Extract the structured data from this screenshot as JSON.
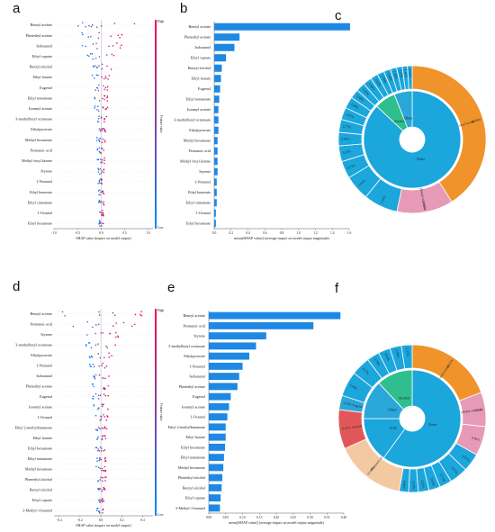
{
  "colors": {
    "bar": "#1E88E5",
    "bar_highlight": "#1E88E5",
    "cbar_high": "#ff0051",
    "cbar_low": "#008bfb",
    "esters": "#1ba6dc",
    "alcohols": "#2fbf8f",
    "others": "#2aa7d9",
    "ketones": "#66c2a5",
    "aldehydes": "#3fb36b",
    "benzyl_acetate": "#f0932b",
    "pentanoic_acid": "#f3c9a2",
    "styrene": "#e15759",
    "eugenol": "#2aa7d9",
    "third_esters": "#1ba6dc",
    "pink": "#e79ab6"
  },
  "panels": {
    "a": "a",
    "b": "b",
    "c": "c",
    "d": "d",
    "e": "e",
    "f": "f"
  },
  "chart_data": [
    {
      "id": "a",
      "type": "scatter",
      "subtype": "shap-beeswarm",
      "xlabel": "SHAP value (impact on model output)",
      "xticks": [
        "-1.0",
        "-0.5",
        "0.0",
        "0.5",
        "1.0"
      ],
      "xlim": [
        -1.0,
        1.1
      ],
      "colorbar": {
        "title": "Feature value",
        "high": "High",
        "low": "Low"
      },
      "features": [
        "Benzyl acetate",
        "Phenethyl acetate",
        "Isobutanol",
        "Ethyl caprate",
        "Benzyl alcohol",
        "Ethyl laurate",
        "Eugenol",
        "Ethyl nonanoate",
        "Isoamyl acetate",
        "3-methylbutyl octanoate",
        "Ethylpyruvate",
        "Methyl hexanoate",
        "Pentanoic acid",
        "Methyl vinyl ketone",
        "Styrene",
        "1-Nonanol",
        "Ethyl benzoate",
        "Ethyl cinnamate",
        "1-Octanol",
        "Ethyl hexanoate"
      ],
      "spread": [
        0.9,
        0.55,
        0.45,
        0.35,
        0.22,
        0.2,
        0.18,
        0.15,
        0.14,
        0.12,
        0.1,
        0.1,
        0.09,
        0.08,
        0.08,
        0.07,
        0.06,
        0.06,
        0.05,
        0.05
      ]
    },
    {
      "id": "b",
      "type": "bar",
      "orientation": "horizontal",
      "xlabel": "mean(|SHAP value|) (average impact on model output magnitude)",
      "xticks": [
        "0.0",
        "0.2",
        "0.4",
        "0.6",
        "0.8",
        "1.0",
        "1.2",
        "1.4",
        "1.6"
      ],
      "xlim": [
        0,
        1.6
      ],
      "categories": [
        "Benzyl acetate",
        "Phenethyl acetate",
        "Isobutanol",
        "Ethyl caprate",
        "Benzyl alcohol",
        "Ethyl laurate",
        "Eugenol",
        "Ethyl nonanoate",
        "Isoamyl acetate",
        "3-methylbutyl octanoate",
        "Ethylpyruvate",
        "Methyl hexanoate",
        "Pentanoic acid",
        "Methyl vinyl ketone",
        "Styrene",
        "1-Nonanol",
        "Ethyl benzoate",
        "Ethyl cinnamate",
        "1-Octanol",
        "Ethyl hexanoate"
      ],
      "values": [
        1.61,
        0.3,
        0.24,
        0.14,
        0.09,
        0.08,
        0.07,
        0.06,
        0.05,
        0.05,
        0.05,
        0.04,
        0.04,
        0.04,
        0.04,
        0.03,
        0.03,
        0.03,
        0.02,
        0.02
      ],
      "highlight_labels": [
        "Ethyl caprate",
        "Ethyl laurate"
      ]
    },
    {
      "id": "c",
      "type": "pie",
      "subtype": "sunburst",
      "inner": [
        {
          "label": "Esters",
          "value": 87,
          "color": "#1ba6dc"
        },
        {
          "label": "Alcohols",
          "value": 7,
          "color": "#2fbf8f"
        },
        {
          "label": "Others",
          "value": 6,
          "color": "#2aa7d9"
        }
      ],
      "outer": [
        {
          "label": "Benzyl acetate",
          "value": 40.08,
          "color": "#f0932b"
        },
        {
          "label": "3-methylbutyl octanoate",
          "value": 12.09,
          "color": "#e79ab6"
        },
        {
          "label": "",
          "value": 7.32,
          "color": "#1ba6dc"
        },
        {
          "label": "",
          "value": 5.41,
          "color": "#1ba6dc"
        },
        {
          "label": "",
          "value": 3.71,
          "color": "#1ba6dc"
        },
        {
          "label": "",
          "value": 3.37,
          "color": "#1ba6dc"
        },
        {
          "label": "",
          "value": 2.91,
          "color": "#1ba6dc"
        },
        {
          "label": "",
          "value": 2.77,
          "color": "#1ba6dc"
        },
        {
          "label": "",
          "value": 2.61,
          "color": "#1ba6dc"
        },
        {
          "label": "",
          "value": 2.49,
          "color": "#1ba6dc"
        },
        {
          "label": "",
          "value": 1.98,
          "color": "#1ba6dc"
        },
        {
          "label": "",
          "value": 1.92,
          "color": "#1ba6dc"
        },
        {
          "label": "",
          "value": 1.86,
          "color": "#1ba6dc"
        },
        {
          "label": "",
          "value": 1.62,
          "color": "#1ba6dc"
        },
        {
          "label": "",
          "value": 1.5,
          "color": "#1ba6dc"
        },
        {
          "label": "",
          "value": 1.45,
          "color": "#1ba6dc"
        },
        {
          "label": "",
          "value": 1.36,
          "color": "#1ba6dc"
        },
        {
          "label": "",
          "value": 1.22,
          "color": "#1ba6dc"
        },
        {
          "label": "",
          "value": 1.1,
          "color": "#1ba6dc"
        },
        {
          "label": "",
          "value": 1.02,
          "color": "#1ba6dc"
        }
      ],
      "outer_text": [
        "40.08%",
        "12.09%",
        "7.32%",
        "5.41%",
        "3.71%",
        "3.37%",
        "2.91%",
        "2.77%",
        "2.61%",
        "2.49%",
        "1.98%",
        "1.92%",
        "1.86%",
        "1.62%",
        "1.50%",
        "1.45%",
        "1.36%",
        "1.22%",
        "1.10%",
        "1.02%"
      ]
    },
    {
      "id": "d",
      "type": "scatter",
      "subtype": "shap-beeswarm",
      "xlabel": "SHAP value (impact on model output)",
      "xticks": [
        "-0.4",
        "-0.2",
        "0.0",
        "0.2",
        "0.4"
      ],
      "xlim": [
        -0.45,
        0.5
      ],
      "colorbar": {
        "title": "Feature value",
        "high": "High",
        "low": "Low"
      },
      "features": [
        "Benzyl acetate",
        "Pentanoic acid",
        "Styrene",
        "3-methylbutyl octanoate",
        "Ethylpyruvate",
        "1-Nonanol",
        "Isobutanol",
        "Phenethyl acetate",
        "Eugenol",
        "Isoamyl acetate",
        "1-Octanol",
        "Ethyl 2-methylbutanoate",
        "Ethyl laurate",
        "Ethyl hexanoate",
        "Ethyl nonanoate",
        "Methyl hexanoate",
        "Phenethyl alcohol",
        "Benzyl alcohol",
        "Ethyl caprate",
        "3-Methyl-1-butanol"
      ],
      "spread": [
        0.4,
        0.35,
        0.2,
        0.15,
        0.12,
        0.11,
        0.1,
        0.09,
        0.08,
        0.07,
        0.07,
        0.06,
        0.06,
        0.06,
        0.05,
        0.05,
        0.05,
        0.04,
        0.04,
        0.04
      ]
    },
    {
      "id": "e",
      "type": "bar",
      "orientation": "horizontal",
      "xlabel": "mean(|SHAP value|) (average impact on model output magnitude)",
      "xticks": [
        "0.00",
        "0.05",
        "0.10",
        "0.15",
        "0.20",
        "0.25",
        "0.30",
        "0.35",
        "0.40"
      ],
      "xlim": [
        0,
        0.4
      ],
      "categories": [
        "Benzyl acetate",
        "Pentanoic acid",
        "Styrene",
        "3-methylbutyl octanoate",
        "Ethylpyruvate",
        "1-Nonanol",
        "Isobutanol",
        "Phenethyl acetate",
        "Eugenol",
        "Isoamyl acetate",
        "1-Octanol",
        "Ethyl 2-methylbutanoate",
        "Ethyl laurate",
        "Ethyl hexanoate",
        "Ethyl nonanoate",
        "Methyl hexanoate",
        "Phenethyl alcohol",
        "Benzyl alcohol",
        "Ethyl caprate",
        "3-Methyl-1-butanol"
      ],
      "values": [
        0.39,
        0.31,
        0.17,
        0.14,
        0.12,
        0.1,
        0.09,
        0.085,
        0.065,
        0.06,
        0.055,
        0.05,
        0.05,
        0.048,
        0.045,
        0.043,
        0.04,
        0.038,
        0.035,
        0.033
      ]
    },
    {
      "id": "f",
      "type": "pie",
      "subtype": "sunburst",
      "inner": [
        {
          "label": "Esters",
          "value": 60,
          "color": "#1ba6dc"
        },
        {
          "label": "Acids",
          "value": 15,
          "color": "#1ba6dc"
        },
        {
          "label": "Others",
          "value": 13,
          "color": "#2aa7d9"
        },
        {
          "label": "Alcohols",
          "value": 12,
          "color": "#2fbf8f"
        }
      ],
      "outer": [
        {
          "label": "Benzyl acetate",
          "value": 19.25,
          "color": "#f0932b"
        },
        {
          "label": "3-methylbutyl octanoate",
          "value": 7.51,
          "color": "#e79ab6"
        },
        {
          "label": "",
          "value": 6.4,
          "color": "#e79ab6"
        },
        {
          "label": "",
          "value": 4.01,
          "color": "#1ba6dc"
        },
        {
          "label": "",
          "value": 3.97,
          "color": "#1ba6dc"
        },
        {
          "label": "",
          "value": 2.71,
          "color": "#1ba6dc"
        },
        {
          "label": "",
          "value": 2.47,
          "color": "#1ba6dc"
        },
        {
          "label": "",
          "value": 2.35,
          "color": "#1ba6dc"
        },
        {
          "label": "",
          "value": 2.1,
          "color": "#1ba6dc"
        },
        {
          "label": "",
          "value": 2.08,
          "color": "#1ba6dc"
        },
        {
          "label": "Pentanoic acid",
          "value": 15.48,
          "color": "#f3c9a2"
        },
        {
          "label": "Styrene",
          "value": 8.61,
          "color": "#e15759"
        },
        {
          "label": "Eugenol",
          "value": 3.15,
          "color": "#2aa7d9"
        },
        {
          "label": "",
          "value": 5.46,
          "color": "#1ba6dc"
        },
        {
          "label": "",
          "value": 4.17,
          "color": "#1ba6dc"
        },
        {
          "label": "",
          "value": 2.76,
          "color": "#1ba6dc"
        },
        {
          "label": "",
          "value": 2.63,
          "color": "#1ba6dc"
        },
        {
          "label": "",
          "value": 2.54,
          "color": "#1ba6dc"
        },
        {
          "label": "",
          "value": 2.35,
          "color": "#1ba6dc"
        }
      ],
      "outer_text": [
        "19.25%",
        "7.51%",
        "6.40%",
        "4.01%",
        "3.97%",
        "2.71%",
        "2.47%",
        "2.35%",
        "2.10%",
        "2.08%",
        "15.48%",
        "8.61%",
        "3.15%",
        "5.46%",
        "4.17%",
        "2.76%",
        "2.63%",
        "2.54%",
        "2.35%"
      ]
    }
  ]
}
